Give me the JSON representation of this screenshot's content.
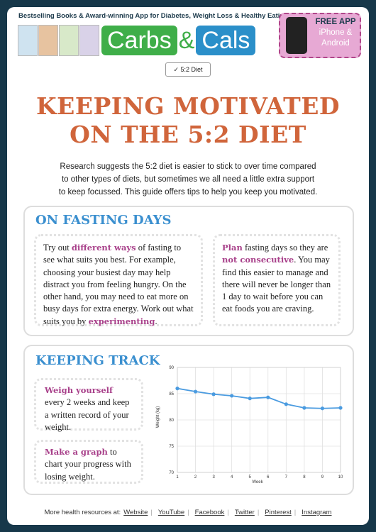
{
  "header": {
    "tagline": "Bestselling Books & Award-winning App for Diabetes, Weight Loss & Healthy Eating",
    "logo": [
      "Carbs",
      "&",
      "Cals"
    ],
    "app_badge": [
      "FREE APP",
      "iPhone &",
      "Android"
    ],
    "tag": "5:2 Diet"
  },
  "title": [
    "KEEPING MOTIVATED",
    "ON THE 5:2 DIET"
  ],
  "intro": [
    "Research suggests the 5:2 diet is easier to stick to over time compared",
    "to other types of diets, but sometimes we all need a little extra support",
    "to keep focussed. This guide offers tips to help you keep you motivated."
  ],
  "fasting": {
    "heading": "ON FASTING DAYS",
    "left": [
      "Try out ",
      "different ways",
      " of fasting to see what suits you best. For example, choosing your busiest day may help distract you from feeling hungry. On the other hand, you may need to eat more on busy days for extra energy. Work out what suits you by ",
      "experimenting",
      "."
    ],
    "right": [
      "Plan",
      " fasting days so they are ",
      "not consecutive",
      ". You may find this easier to manage and there will never be longer than 1 day to wait before you can eat foods you are craving."
    ]
  },
  "tracking": {
    "heading": "KEEPING TRACK",
    "tip1": [
      "Weigh yourself",
      " every 2 weeks and keep a written record of your weight."
    ],
    "tip2": [
      "Make a graph",
      " to chart your progress with losing weight."
    ]
  },
  "chart_data": {
    "type": "line",
    "x_label": "Week",
    "y_label": "Weight (kg)",
    "x": [
      1,
      2,
      3,
      4,
      5,
      6,
      7,
      8,
      9,
      10
    ],
    "series": [
      {
        "name": "Weight",
        "color": "#4a9be0",
        "values": [
          86,
          85.4,
          84.9,
          84.6,
          84.1,
          84.3,
          83,
          82.3,
          82.2,
          82.3
        ]
      }
    ],
    "xlim": [
      1,
      10
    ],
    "xticks": [
      1,
      2,
      3,
      4,
      5,
      6,
      7,
      8,
      9,
      10
    ],
    "ylim": [
      70,
      90
    ],
    "yticks": [
      70,
      75,
      80,
      85,
      90
    ],
    "grid": true
  },
  "footer": {
    "lead": "More health resources at:",
    "links": [
      "Website",
      "YouTube",
      "Facebook",
      "Twitter",
      "Pinterest",
      "Instagram"
    ]
  }
}
